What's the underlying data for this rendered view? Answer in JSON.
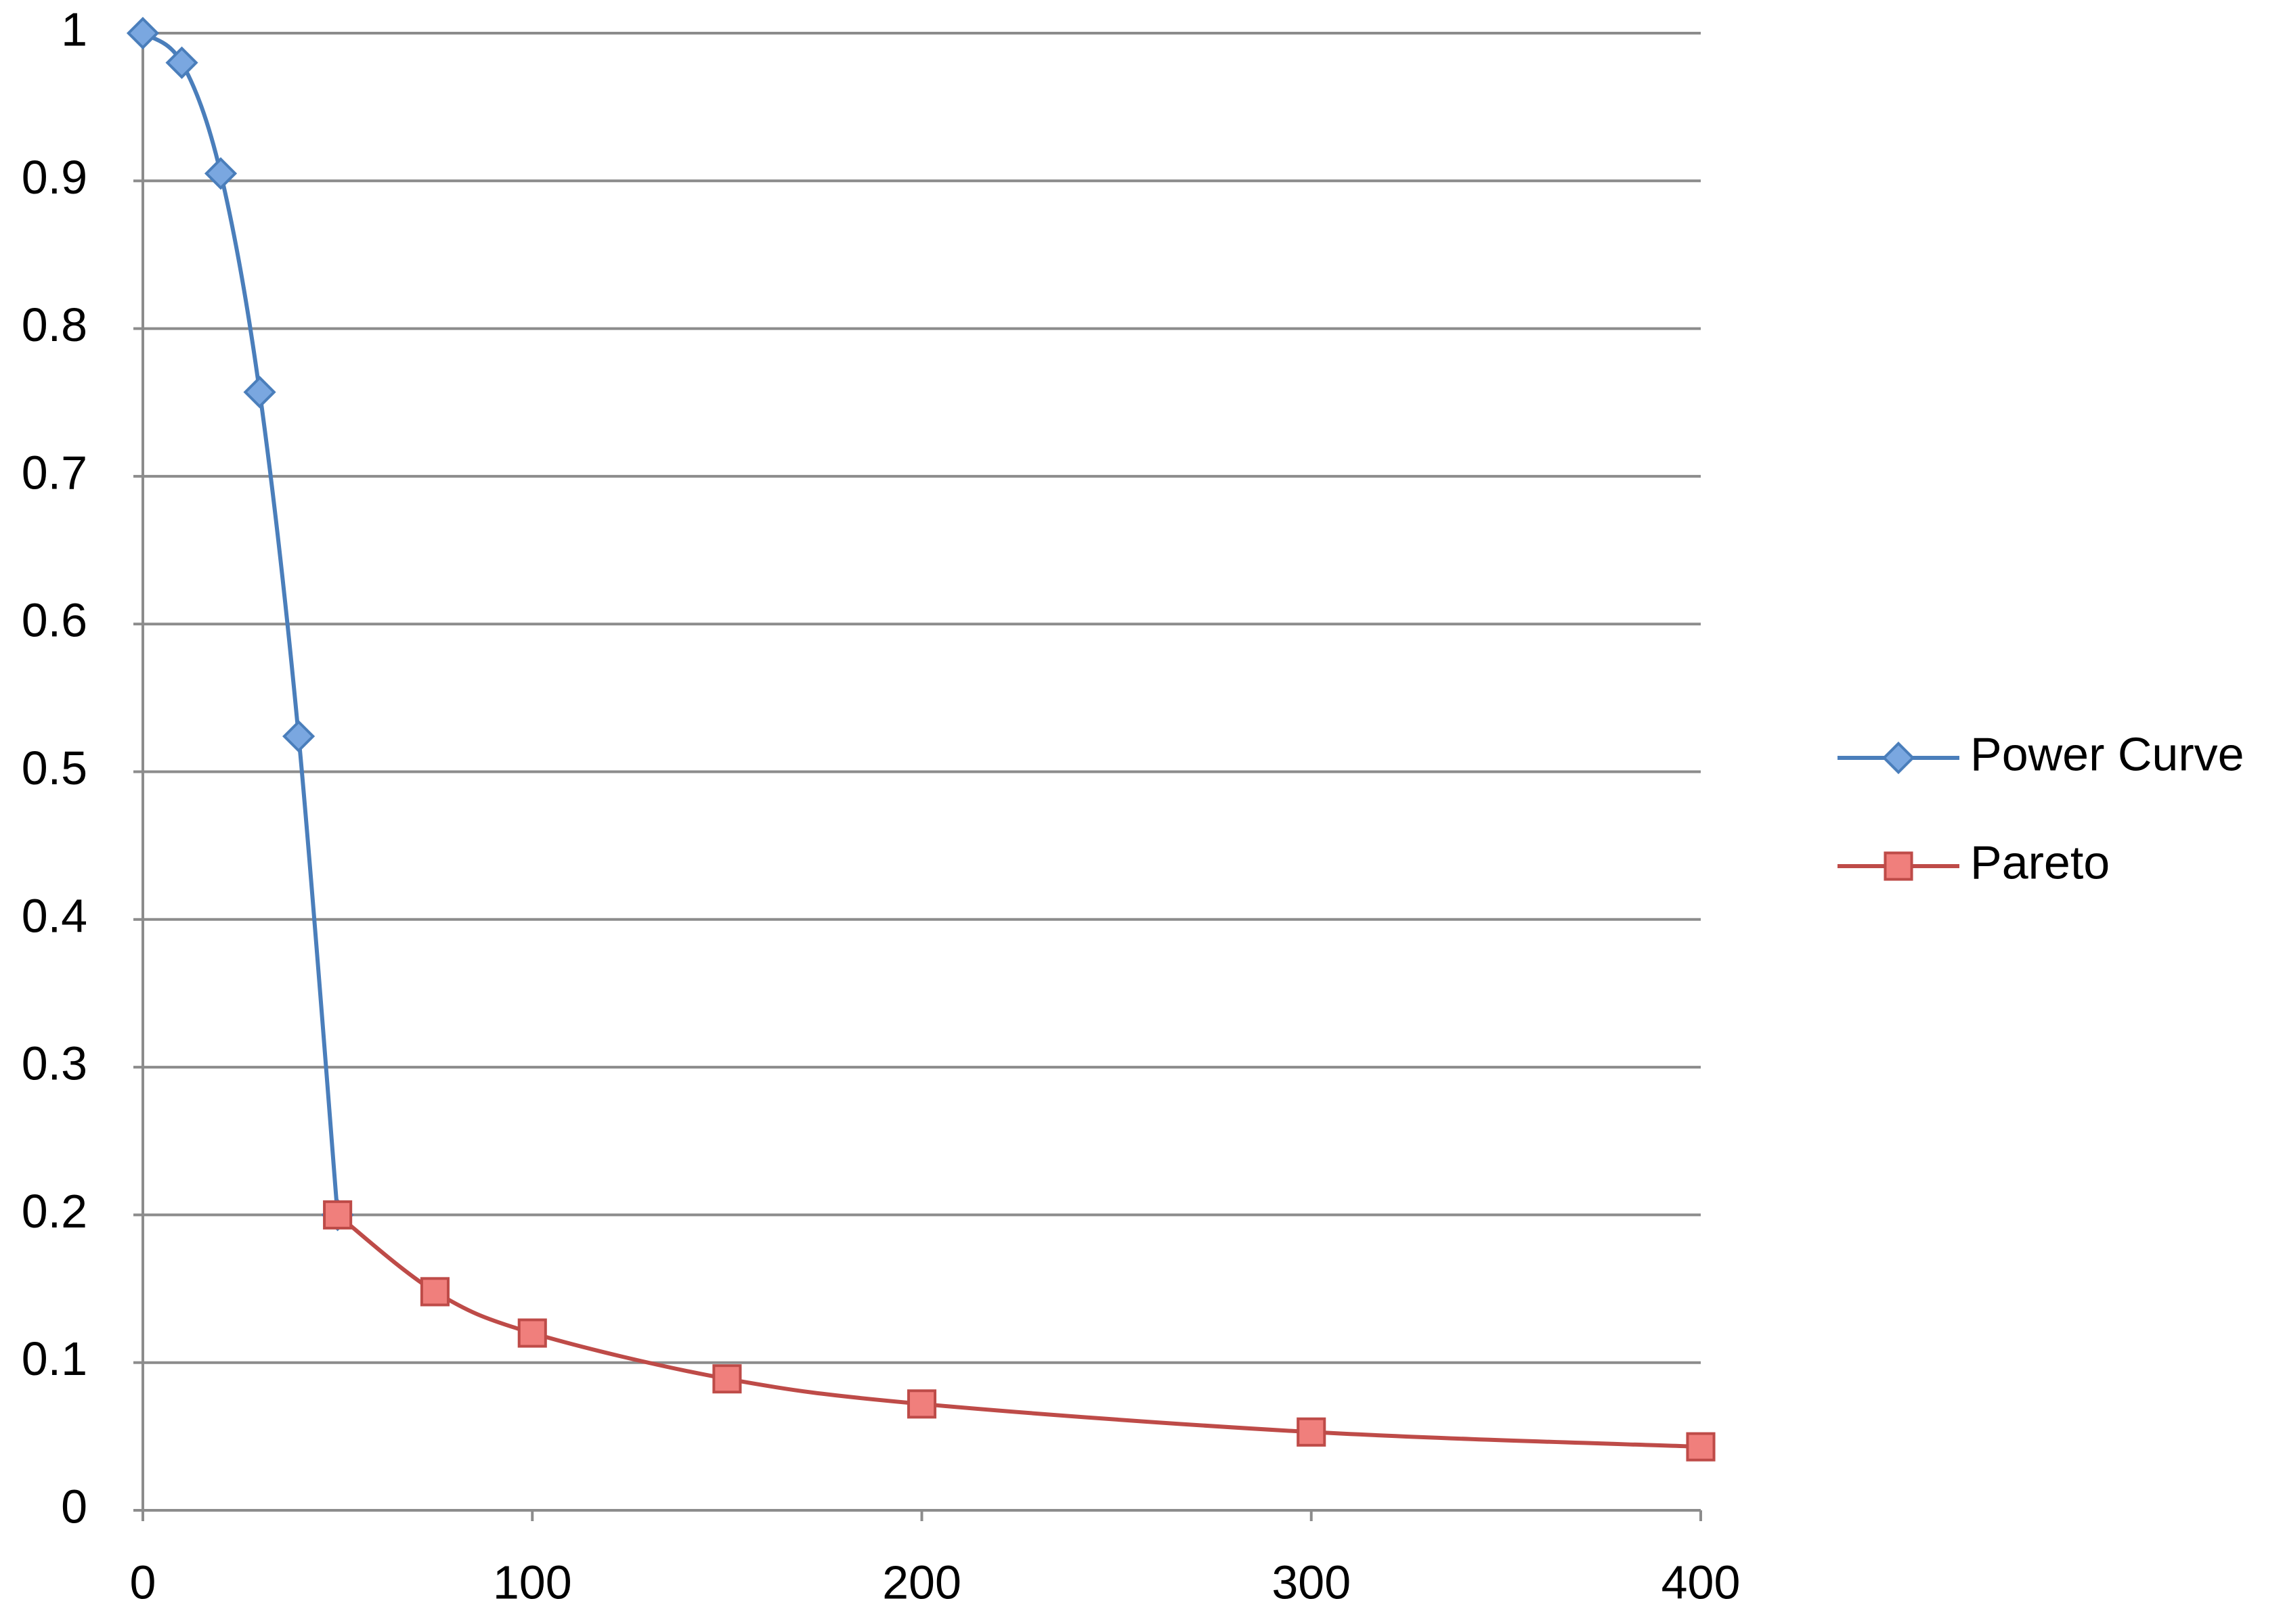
{
  "chart_data": {
    "type": "scatter-smooth",
    "series": [
      {
        "name": "Power Curve",
        "color": "#4a7ebb",
        "marker": "diamond",
        "marker_fill": "#7aa7e0",
        "x": [
          0,
          10,
          20,
          30,
          40,
          50
        ],
        "values": [
          1,
          0.98,
          0.905,
          0.757,
          0.524,
          0.2
        ]
      },
      {
        "name": "Pareto",
        "color": "#be4b48",
        "marker": "square",
        "marker_fill": "#f07f7c",
        "x": [
          50,
          75,
          100,
          150,
          200,
          300,
          400
        ],
        "values": [
          0.2,
          0.148,
          0.12,
          0.089,
          0.072,
          0.053,
          0.043
        ]
      }
    ],
    "xlim": [
      0,
      400
    ],
    "xticks": [
      0,
      100,
      200,
      300,
      400
    ],
    "ylim": [
      0,
      1
    ],
    "yticks": [
      0,
      0.1,
      0.2,
      0.3,
      0.4,
      0.5,
      0.6,
      0.7,
      0.8,
      0.9,
      1
    ],
    "grid": true,
    "legend": "right"
  }
}
